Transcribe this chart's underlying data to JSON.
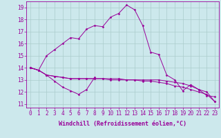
{
  "xlabel": "Windchill (Refroidissement éolien,°C)",
  "background_color": "#cce8ec",
  "grid_color": "#aacccc",
  "line_color": "#990099",
  "xlim": [
    -0.5,
    23.5
  ],
  "ylim": [
    10.7,
    19.5
  ],
  "xticks": [
    0,
    1,
    2,
    3,
    4,
    5,
    6,
    7,
    8,
    9,
    10,
    11,
    12,
    13,
    14,
    15,
    16,
    17,
    18,
    19,
    20,
    21,
    22,
    23
  ],
  "yticks": [
    11,
    12,
    13,
    14,
    15,
    16,
    17,
    18,
    19
  ],
  "series1": [
    14.0,
    13.8,
    13.4,
    12.9,
    12.4,
    12.1,
    11.8,
    12.2,
    13.2,
    null,
    null,
    null,
    null,
    null,
    null,
    null,
    null,
    null,
    null,
    null,
    null,
    null,
    null,
    null
  ],
  "series2": [
    14.0,
    13.8,
    13.4,
    13.3,
    13.2,
    13.1,
    13.1,
    13.1,
    13.1,
    13.1,
    13.0,
    13.0,
    13.0,
    13.0,
    12.9,
    12.9,
    12.8,
    12.7,
    12.5,
    12.4,
    12.2,
    12.0,
    11.8,
    11.2
  ],
  "series3": [
    14.0,
    13.8,
    13.4,
    13.3,
    13.2,
    13.1,
    13.1,
    13.1,
    13.1,
    13.1,
    13.1,
    13.1,
    13.0,
    13.0,
    13.0,
    13.0,
    13.0,
    12.9,
    12.8,
    12.7,
    12.5,
    12.2,
    12.0,
    11.2
  ],
  "series4": [
    14.0,
    13.8,
    15.0,
    15.5,
    16.0,
    16.5,
    16.4,
    17.2,
    17.5,
    17.4,
    18.2,
    18.5,
    19.2,
    18.8,
    17.5,
    15.3,
    15.1,
    13.4,
    13.0,
    12.1,
    12.6,
    12.2,
    11.7,
    11.6
  ],
  "tick_fontsize": 5.5,
  "xlabel_fontsize": 6.0,
  "marker": "D",
  "markersize": 1.5,
  "linewidth": 0.7
}
